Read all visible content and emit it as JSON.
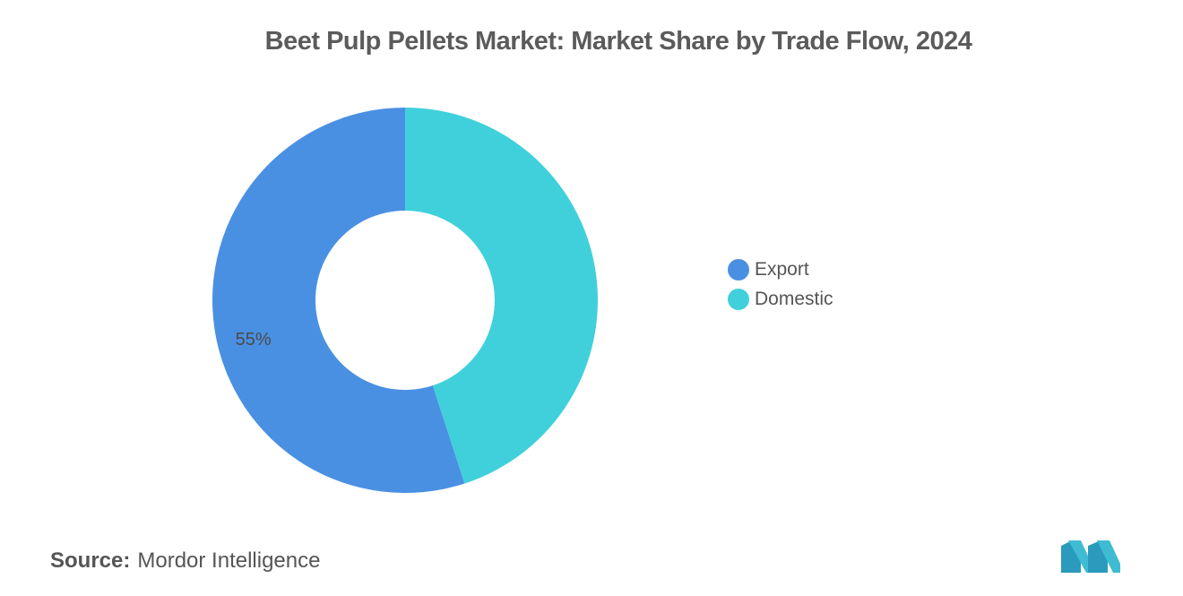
{
  "title": "Beet Pulp Pellets Market: Market Share by Trade Flow, 2024",
  "chart_data": {
    "type": "pie",
    "variant": "donut",
    "title": "Beet Pulp Pellets Market: Market Share by Trade Flow, 2024",
    "categories": [
      "Export",
      "Domestic"
    ],
    "values": [
      55,
      45
    ],
    "colors": [
      "#4a90e2",
      "#40d0db"
    ],
    "data_labels": [
      "55%",
      ""
    ],
    "legend_position": "right"
  },
  "source": {
    "label": "Source:",
    "value": "Mordor Intelligence"
  }
}
